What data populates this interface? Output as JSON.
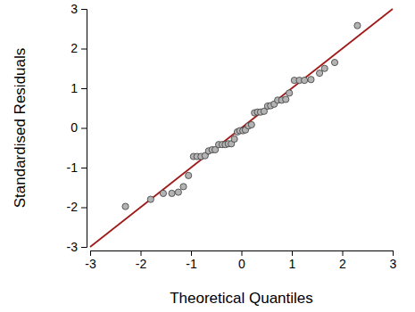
{
  "chart_data": {
    "type": "scatter",
    "xlabel": "Theoretical Quantiles",
    "ylabel": "Standardised Residuals",
    "xlim": [
      -3,
      3
    ],
    "ylim": [
      -3,
      3
    ],
    "xticks": [
      -3,
      -2,
      -1,
      0,
      1,
      2,
      3
    ],
    "yticks": [
      -3,
      -2,
      -1,
      0,
      1,
      2,
      3
    ],
    "grid": false,
    "series": [
      {
        "type": "scatter",
        "marker": "circle",
        "color": "#b3b3b3",
        "x": [
          -2.3,
          -1.8,
          -1.55,
          -1.38,
          -1.25,
          -1.15,
          -1.05,
          -0.95,
          -0.88,
          -0.8,
          -0.72,
          -0.65,
          -0.58,
          -0.52,
          -0.45,
          -0.38,
          -0.32,
          -0.26,
          -0.2,
          -0.14,
          -0.08,
          -0.03,
          0.03,
          0.08,
          0.14,
          0.2,
          0.26,
          0.32,
          0.38,
          0.45,
          0.52,
          0.58,
          0.65,
          0.72,
          0.8,
          0.88,
          0.95,
          1.05,
          1.15,
          1.25,
          1.38,
          1.55,
          1.65,
          1.85,
          2.3
        ],
        "values": [
          -1.98,
          -1.8,
          -1.65,
          -1.65,
          -1.62,
          -1.48,
          -1.2,
          -0.72,
          -0.72,
          -0.72,
          -0.7,
          -0.58,
          -0.55,
          -0.55,
          -0.42,
          -0.42,
          -0.42,
          -0.4,
          -0.4,
          -0.28,
          -0.1,
          -0.07,
          -0.07,
          -0.05,
          0.05,
          0.08,
          0.38,
          0.4,
          0.4,
          0.42,
          0.55,
          0.56,
          0.6,
          0.7,
          0.7,
          0.72,
          0.88,
          1.2,
          1.2,
          1.2,
          1.22,
          1.38,
          1.5,
          1.65,
          2.58
        ]
      },
      {
        "type": "line",
        "line_style": "solid",
        "color": "#a11a1a",
        "x": [
          -3,
          3
        ],
        "values": [
          -3,
          3
        ]
      }
    ]
  }
}
